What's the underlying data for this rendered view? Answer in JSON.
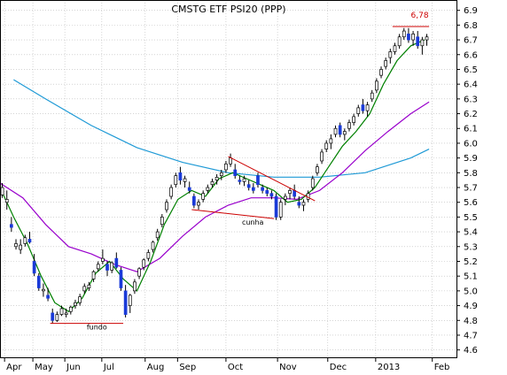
{
  "chart_data": {
    "type": "candlestick",
    "title": "CMSTG ETF PSI20 (PPP)",
    "xlabel": "",
    "ylabel": "",
    "ylim": [
      4.55,
      6.97
    ],
    "yticks": [
      4.6,
      4.7,
      4.8,
      4.9,
      5.0,
      5.1,
      5.2,
      5.3,
      5.4,
      5.5,
      5.6,
      5.7,
      5.8,
      5.9,
      6.0,
      6.1,
      6.2,
      6.3,
      6.4,
      6.5,
      6.6,
      6.7,
      6.8,
      6.9
    ],
    "x_range": [
      0,
      100
    ],
    "month_ticks": [
      {
        "label": "Apr",
        "x": 1
      },
      {
        "label": "May",
        "x": 7.2
      },
      {
        "label": "Jun",
        "x": 14.2
      },
      {
        "label": "Jul",
        "x": 22.3
      },
      {
        "label": "Aug",
        "x": 31.8
      },
      {
        "label": "Sep",
        "x": 38.9
      },
      {
        "label": "Oct",
        "x": 49.5
      },
      {
        "label": "Nov",
        "x": 60.8
      },
      {
        "label": "Dec",
        "x": 71.8
      },
      {
        "label": "2013",
        "x": 82.3
      },
      {
        "label": "Feb",
        "x": 94.7
      }
    ],
    "candles": [
      [
        0.5,
        5.65,
        5.73,
        5.63,
        5.7
      ],
      [
        1.5,
        5.6,
        5.68,
        5.55,
        5.62
      ],
      [
        2.5,
        5.45,
        5.5,
        5.4,
        5.43
      ],
      [
        3.5,
        5.3,
        5.35,
        5.28,
        5.32
      ],
      [
        4.5,
        5.28,
        5.35,
        5.25,
        5.31
      ],
      [
        5.5,
        5.32,
        5.38,
        5.3,
        5.36
      ],
      [
        6.5,
        5.35,
        5.4,
        5.32,
        5.33
      ],
      [
        7.5,
        5.2,
        5.25,
        5.1,
        5.12
      ],
      [
        8.5,
        5.1,
        5.12,
        5.0,
        5.02
      ],
      [
        9.5,
        5.0,
        5.05,
        4.96,
        5.01
      ],
      [
        10.5,
        4.97,
        5.02,
        4.93,
        4.95
      ],
      [
        11.5,
        4.85,
        4.88,
        4.78,
        4.8
      ],
      [
        12.5,
        4.8,
        4.86,
        4.79,
        4.84
      ],
      [
        13.5,
        4.84,
        4.9,
        4.83,
        4.88
      ],
      [
        14.5,
        4.84,
        4.88,
        4.82,
        4.85
      ],
      [
        15.5,
        4.86,
        4.9,
        4.84,
        4.89
      ],
      [
        16.5,
        4.9,
        4.94,
        4.88,
        4.92
      ],
      [
        17.5,
        4.92,
        4.98,
        4.9,
        4.96
      ],
      [
        18.5,
        5.0,
        5.05,
        4.98,
        5.03
      ],
      [
        19.5,
        5.02,
        5.06,
        5.0,
        5.04
      ],
      [
        20.5,
        5.08,
        5.14,
        5.06,
        5.13
      ],
      [
        21.5,
        5.15,
        5.2,
        5.13,
        5.18
      ],
      [
        22.5,
        5.2,
        5.28,
        5.18,
        5.22
      ],
      [
        23.5,
        5.18,
        5.2,
        5.1,
        5.14
      ],
      [
        24.5,
        5.14,
        5.2,
        5.12,
        5.19
      ],
      [
        25.5,
        5.22,
        5.26,
        5.15,
        5.16
      ],
      [
        26.5,
        5.14,
        5.16,
        5.0,
        5.02
      ],
      [
        27.5,
        5.0,
        5.04,
        4.82,
        4.84
      ],
      [
        28.5,
        4.9,
        4.98,
        4.85,
        4.97
      ],
      [
        29.5,
        5.0,
        5.08,
        4.98,
        5.06
      ],
      [
        30.5,
        5.1,
        5.16,
        5.08,
        5.15
      ],
      [
        31.5,
        5.16,
        5.22,
        5.14,
        5.21
      ],
      [
        32.5,
        5.22,
        5.28,
        5.2,
        5.26
      ],
      [
        33.5,
        5.28,
        5.34,
        5.26,
        5.33
      ],
      [
        34.5,
        5.36,
        5.42,
        5.34,
        5.4
      ],
      [
        35.5,
        5.45,
        5.52,
        5.43,
        5.5
      ],
      [
        36.5,
        5.55,
        5.62,
        5.53,
        5.6
      ],
      [
        37.5,
        5.64,
        5.72,
        5.62,
        5.7
      ],
      [
        38.5,
        5.72,
        5.8,
        5.7,
        5.78
      ],
      [
        39.5,
        5.8,
        5.84,
        5.72,
        5.75
      ],
      [
        40.5,
        5.74,
        5.78,
        5.7,
        5.76
      ],
      [
        41.5,
        5.7,
        5.74,
        5.66,
        5.68
      ],
      [
        42.5,
        5.64,
        5.66,
        5.56,
        5.58
      ],
      [
        43.5,
        5.58,
        5.62,
        5.55,
        5.6
      ],
      [
        44.5,
        5.62,
        5.68,
        5.6,
        5.66
      ],
      [
        45.5,
        5.68,
        5.72,
        5.66,
        5.7
      ],
      [
        46.5,
        5.72,
        5.76,
        5.7,
        5.74
      ],
      [
        47.5,
        5.75,
        5.79,
        5.72,
        5.77
      ],
      [
        48.5,
        5.78,
        5.82,
        5.75,
        5.8
      ],
      [
        49.5,
        5.82,
        5.88,
        5.8,
        5.86
      ],
      [
        50.5,
        5.86,
        5.93,
        5.84,
        5.9
      ],
      [
        51.5,
        5.82,
        5.86,
        5.76,
        5.78
      ],
      [
        52.5,
        5.75,
        5.78,
        5.72,
        5.74
      ],
      [
        53.5,
        5.74,
        5.78,
        5.71,
        5.76
      ],
      [
        54.5,
        5.72,
        5.75,
        5.68,
        5.7
      ],
      [
        55.5,
        5.7,
        5.73,
        5.66,
        5.68
      ],
      [
        56.5,
        5.78,
        5.8,
        5.7,
        5.72
      ],
      [
        57.5,
        5.7,
        5.72,
        5.66,
        5.68
      ],
      [
        58.5,
        5.68,
        5.7,
        5.64,
        5.66
      ],
      [
        59.5,
        5.66,
        5.68,
        5.62,
        5.64
      ],
      [
        60.5,
        5.64,
        5.66,
        5.48,
        5.5
      ],
      [
        61.5,
        5.5,
        5.62,
        5.48,
        5.6
      ],
      [
        62.5,
        5.62,
        5.66,
        5.58,
        5.64
      ],
      [
        63.5,
        5.66,
        5.7,
        5.62,
        5.68
      ],
      [
        64.5,
        5.68,
        5.72,
        5.62,
        5.64
      ],
      [
        65.5,
        5.6,
        5.64,
        5.56,
        5.58
      ],
      [
        66.5,
        5.58,
        5.62,
        5.54,
        5.6
      ],
      [
        67.5,
        5.62,
        5.68,
        5.6,
        5.66
      ],
      [
        68.5,
        5.7,
        5.78,
        5.68,
        5.76
      ],
      [
        69.5,
        5.8,
        5.86,
        5.78,
        5.84
      ],
      [
        70.5,
        5.88,
        5.96,
        5.86,
        5.94
      ],
      [
        71.5,
        5.96,
        6.02,
        5.94,
        6.0
      ],
      [
        72.5,
        6.0,
        6.06,
        5.96,
        6.03
      ],
      [
        73.5,
        6.06,
        6.12,
        6.04,
        6.1
      ],
      [
        74.5,
        6.12,
        6.14,
        6.04,
        6.06
      ],
      [
        75.5,
        6.06,
        6.1,
        6.02,
        6.08
      ],
      [
        76.5,
        6.1,
        6.16,
        6.08,
        6.14
      ],
      [
        77.5,
        6.14,
        6.2,
        6.12,
        6.18
      ],
      [
        78.5,
        6.2,
        6.26,
        6.18,
        6.24
      ],
      [
        79.5,
        6.26,
        6.3,
        6.2,
        6.22
      ],
      [
        80.5,
        6.22,
        6.28,
        6.18,
        6.26
      ],
      [
        81.5,
        6.3,
        6.36,
        6.28,
        6.34
      ],
      [
        82.5,
        6.36,
        6.44,
        6.34,
        6.42
      ],
      [
        83.5,
        6.46,
        6.52,
        6.44,
        6.5
      ],
      [
        84.5,
        6.52,
        6.58,
        6.5,
        6.56
      ],
      [
        85.5,
        6.58,
        6.64,
        6.54,
        6.62
      ],
      [
        86.5,
        6.62,
        6.68,
        6.6,
        6.66
      ],
      [
        87.5,
        6.66,
        6.74,
        6.64,
        6.72
      ],
      [
        88.5,
        6.72,
        6.78,
        6.7,
        6.76
      ],
      [
        89.5,
        6.74,
        6.78,
        6.68,
        6.7
      ],
      [
        90.5,
        6.7,
        6.76,
        6.66,
        6.74
      ],
      [
        91.5,
        6.72,
        6.76,
        6.64,
        6.66
      ],
      [
        92.5,
        6.66,
        6.72,
        6.6,
        6.7
      ],
      [
        93.5,
        6.7,
        6.74,
        6.66,
        6.72
      ]
    ],
    "series": [
      {
        "name": "",
        "color": "#1f9ad6",
        "points": [
          [
            3,
            6.43
          ],
          [
            10,
            6.3
          ],
          [
            20,
            6.12
          ],
          [
            30,
            5.97
          ],
          [
            40,
            5.87
          ],
          [
            50,
            5.8
          ],
          [
            60,
            5.77
          ],
          [
            70,
            5.77
          ],
          [
            80,
            5.8
          ],
          [
            90,
            5.9
          ],
          [
            94,
            5.96
          ]
        ]
      },
      {
        "name": "",
        "color": "#9900cc",
        "points": [
          [
            0,
            5.73
          ],
          [
            5,
            5.63
          ],
          [
            10,
            5.45
          ],
          [
            15,
            5.3
          ],
          [
            20,
            5.25
          ],
          [
            25,
            5.18
          ],
          [
            30,
            5.13
          ],
          [
            35,
            5.22
          ],
          [
            40,
            5.37
          ],
          [
            45,
            5.5
          ],
          [
            50,
            5.58
          ],
          [
            55,
            5.63
          ],
          [
            60,
            5.63
          ],
          [
            65,
            5.62
          ],
          [
            70,
            5.68
          ],
          [
            75,
            5.8
          ],
          [
            80,
            5.95
          ],
          [
            85,
            6.08
          ],
          [
            90,
            6.2
          ],
          [
            94,
            6.28
          ]
        ]
      },
      {
        "name": "",
        "color": "#008000",
        "points": [
          [
            0,
            5.7
          ],
          [
            3,
            5.5
          ],
          [
            6,
            5.32
          ],
          [
            9,
            5.1
          ],
          [
            12,
            4.92
          ],
          [
            15,
            4.86
          ],
          [
            18,
            4.95
          ],
          [
            21,
            5.12
          ],
          [
            24,
            5.2
          ],
          [
            27,
            5.08
          ],
          [
            30,
            5.0
          ],
          [
            33,
            5.2
          ],
          [
            36,
            5.45
          ],
          [
            39,
            5.62
          ],
          [
            42,
            5.68
          ],
          [
            45,
            5.64
          ],
          [
            48,
            5.76
          ],
          [
            51,
            5.8
          ],
          [
            54,
            5.76
          ],
          [
            57,
            5.72
          ],
          [
            60,
            5.68
          ],
          [
            63,
            5.6
          ],
          [
            66,
            5.62
          ],
          [
            69,
            5.7
          ],
          [
            72,
            5.84
          ],
          [
            75,
            5.98
          ],
          [
            78,
            6.08
          ],
          [
            81,
            6.2
          ],
          [
            84,
            6.4
          ],
          [
            87,
            6.56
          ],
          [
            90,
            6.66
          ],
          [
            93,
            6.7
          ]
        ]
      }
    ],
    "trendlines": [
      {
        "color": "#cc0000",
        "points": [
          [
            11,
            4.78
          ],
          [
            27,
            4.78
          ]
        ]
      },
      {
        "color": "#cc0000",
        "points": [
          [
            42,
            5.55
          ],
          [
            60,
            5.49
          ]
        ]
      },
      {
        "color": "#cc0000",
        "points": [
          [
            50,
            5.91
          ],
          [
            69,
            5.61
          ]
        ]
      },
      {
        "color": "#cc0000",
        "points": [
          [
            86,
            6.79
          ],
          [
            94,
            6.79
          ]
        ]
      }
    ],
    "annotations": [
      {
        "text": "fundo",
        "x": 19,
        "y": 4.74,
        "cls": "ann"
      },
      {
        "text": "cunha",
        "x": 53,
        "y": 5.45,
        "cls": "ann"
      },
      {
        "text": "6,78",
        "x": 90,
        "y": 6.85,
        "cls": "ann-red"
      }
    ]
  }
}
